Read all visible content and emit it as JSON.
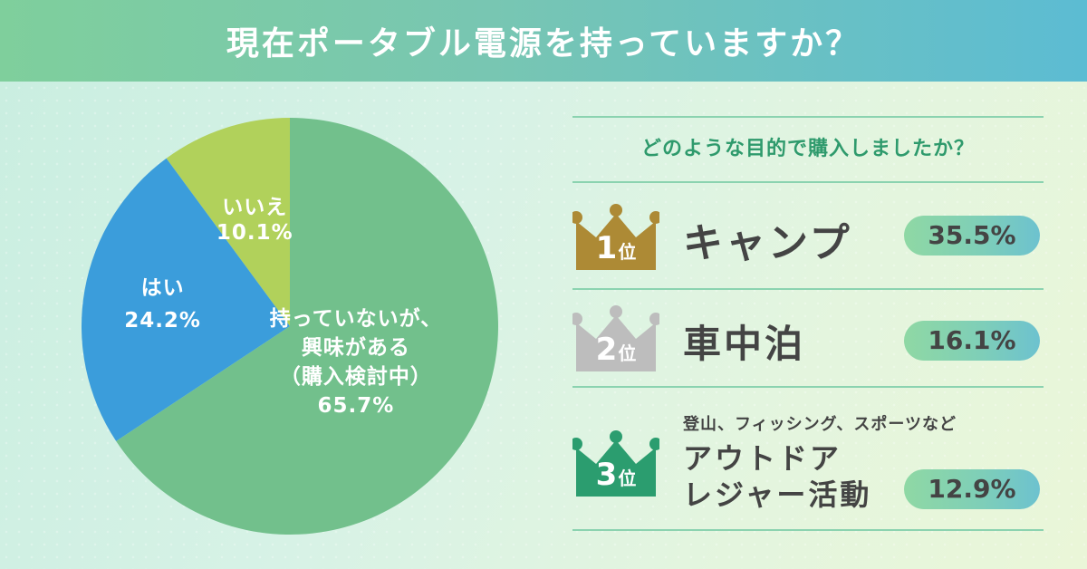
{
  "header": {
    "title": "現在ポータブル電源を持っていますか？"
  },
  "colors": {
    "no_but_interested": "#72c08c",
    "yes": "#3b9ddb",
    "no": "#b1d15b",
    "gold": "#ad8a35",
    "silver": "#bdbdbd",
    "bronze": "#2b9d6f"
  },
  "chart_data": {
    "type": "pie",
    "title": "現在ポータブル電源を持っていますか？",
    "slices": [
      {
        "label_lines": [
          "いいえ"
        ],
        "value": 10.1,
        "value_label": "10.1%"
      },
      {
        "label_lines": [
          "持っていないが、",
          "興味がある",
          "（購入検討中）"
        ],
        "value": 65.7,
        "value_label": "65.7%"
      },
      {
        "label_lines": [
          "はい"
        ],
        "value": 24.2,
        "value_label": "24.2%"
      }
    ]
  },
  "ranking": {
    "question": "どのような目的で購入しましたか？",
    "items": [
      {
        "rank": "1",
        "suffix": "位",
        "label": "キャンプ",
        "sub": "",
        "percent": "35.5%",
        "value": 35.5
      },
      {
        "rank": "2",
        "suffix": "位",
        "label": "車中泊",
        "sub": "",
        "percent": "16.1%",
        "value": 16.1
      },
      {
        "rank": "3",
        "suffix": "位",
        "label_lines": [
          "アウトドア",
          "レジャー活動"
        ],
        "sub": "登山、フィッシング、スポーツなど",
        "percent": "12.9%",
        "value": 12.9
      }
    ]
  }
}
